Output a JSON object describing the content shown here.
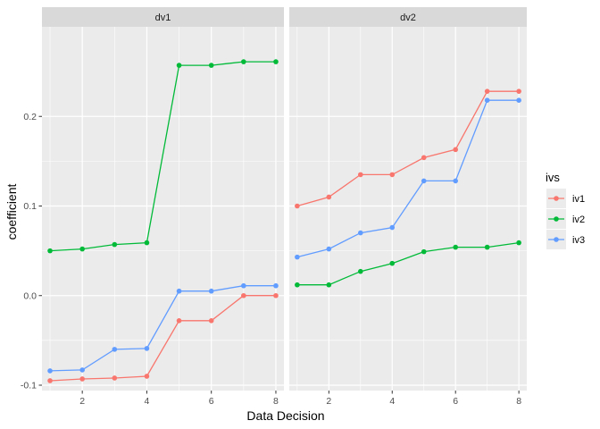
{
  "chart_data": {
    "type": "line",
    "facet_var": "",
    "panels": [
      {
        "name": "dv1",
        "series": [
          {
            "name": "iv1",
            "x": [
              1,
              2,
              3,
              4,
              5,
              6,
              7,
              8
            ],
            "values": [
              -0.095,
              -0.093,
              -0.092,
              -0.09,
              -0.028,
              -0.028,
              0.0,
              0.0
            ]
          },
          {
            "name": "iv2",
            "x": [
              1,
              2,
              3,
              4,
              5,
              6,
              7,
              8
            ],
            "values": [
              0.05,
              0.052,
              0.057,
              0.059,
              0.257,
              0.257,
              0.261,
              0.261
            ]
          },
          {
            "name": "iv3",
            "x": [
              1,
              2,
              3,
              4,
              5,
              6,
              7,
              8
            ],
            "values": [
              -0.084,
              -0.083,
              -0.06,
              -0.059,
              0.005,
              0.005,
              0.011,
              0.011
            ]
          }
        ]
      },
      {
        "name": "dv2",
        "series": [
          {
            "name": "iv1",
            "x": [
              1,
              2,
              3,
              4,
              5,
              6,
              7,
              8
            ],
            "values": [
              0.1,
              0.11,
              0.135,
              0.135,
              0.154,
              0.163,
              0.228,
              0.228
            ]
          },
          {
            "name": "iv2",
            "x": [
              1,
              2,
              3,
              4,
              5,
              6,
              7,
              8
            ],
            "values": [
              0.012,
              0.012,
              0.027,
              0.036,
              0.049,
              0.054,
              0.054,
              0.059
            ]
          },
          {
            "name": "iv3",
            "x": [
              1,
              2,
              3,
              4,
              5,
              6,
              7,
              8
            ],
            "values": [
              0.043,
              0.052,
              0.07,
              0.076,
              0.128,
              0.128,
              0.218,
              0.218
            ]
          }
        ]
      }
    ],
    "xlabel": "Data Decision",
    "ylabel": "coefficient",
    "xlim": [
      0.75,
      8.25
    ],
    "ylim": [
      -0.106,
      0.3
    ],
    "x_ticks": [
      2,
      4,
      6,
      8
    ],
    "y_ticks": [
      -0.1,
      0.0,
      0.1,
      0.2
    ],
    "y_tick_labels": [
      "-0.1",
      "0.0",
      "0.1",
      "0.2"
    ],
    "grid": true,
    "legend": {
      "title": "ivs",
      "position": "right",
      "entries": [
        {
          "name": "iv1",
          "color": "#F8766D"
        },
        {
          "name": "iv2",
          "color": "#00BA38"
        },
        {
          "name": "iv3",
          "color": "#619CFF"
        }
      ]
    },
    "colors": {
      "panel_bg": "#EBEBEB",
      "strip_bg": "#D9D9D9",
      "grid": "#FFFFFF"
    }
  }
}
